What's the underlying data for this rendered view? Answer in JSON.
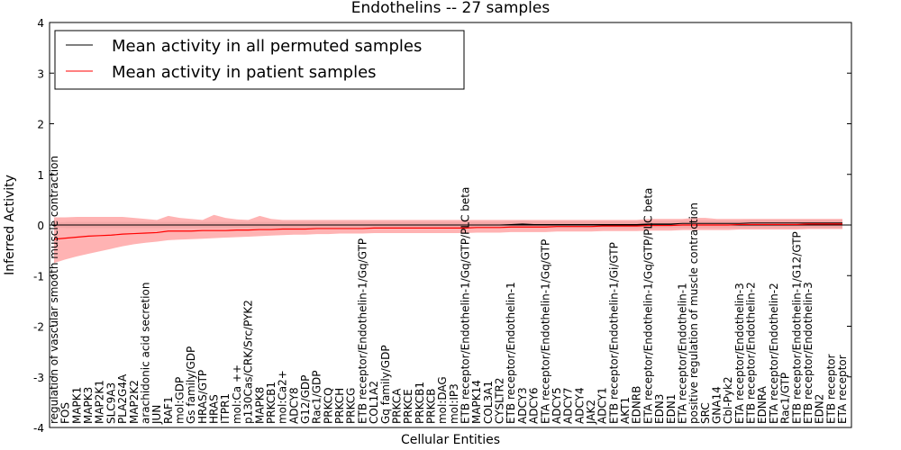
{
  "chart_data": {
    "type": "line",
    "title": "Endothelins -- 27 samples",
    "xlabel": "Cellular Entities",
    "ylabel": "Inferred Activity",
    "ylim": [
      -4,
      4
    ],
    "yticks": [
      -4,
      -3,
      -2,
      -1,
      0,
      1,
      2,
      3,
      4
    ],
    "legend_position": "top-left",
    "colors": {
      "permuted": "#000000",
      "patient": "#ff0000",
      "patient_band": "#ff9a9a",
      "permuted_band": "#b3b3b3",
      "zero_line": "#000000"
    },
    "categories": [
      "regulation of vascular smooth muscle contraction",
      "FOS",
      "MAPK1",
      "MAPK3",
      "MAP2K1",
      "SLC9A3",
      "PLA2G4A",
      "MAP2K2",
      "arachidonic acid secretion",
      "JUN",
      "RAF1",
      "mol:GDP",
      "Gs family/GDP",
      "HRAS/GTP",
      "HRAS",
      "ITPR1",
      "mol:Ca ++",
      "p130Cas/CRK/Src/PYK2",
      "MAPK8",
      "PRKCB1",
      "mol:Ca2+",
      "ADCY8",
      "G12/GDP",
      "Rac1/GDP",
      "PRKCQ",
      "PRKCH",
      "PRKCG",
      "ETB receptor/Endothelin-1/Gq/GTP",
      "COL1A2",
      "Gq family/GDP",
      "PRKCA",
      "PRKCE",
      "PRKCB1",
      "PRKCB",
      "mol:DAG",
      "mol:IP3",
      "ETB receptor/Endothelin-1/Gq/GTP/PLC beta",
      "MAPK14",
      "COL3A1",
      "CYSLTR2",
      "ETB receptor/Endothelin-1",
      "ADCY3",
      "ADCY6",
      "ETA receptor/Endothelin-1/Gq/GTP",
      "ADCY5",
      "ADCY7",
      "ADCY4",
      "JAK2",
      "ADCY1",
      "ETB receptor/Endothelin-1/Gi/GTP",
      "AKT1",
      "EDNRB",
      "ETA receptor/Endothelin-1/Gq/GTP/PLC beta",
      "EDN3",
      "EDN1",
      "ETA receptor/Endothelin-1",
      "positive regulation of muscle contraction",
      "SRC",
      "GNA14",
      "Cbl-Pyk2",
      "ETA receptor/Endothelin-3",
      "ETB receptor/Endothelin-2",
      "EDNRA",
      "ETA receptor/Endothelin-2",
      "Rac1/GTP",
      "ETB receptor/Endothelin-1/G12/GTP",
      "ETB receptor/Endothelin-3",
      "EDN2",
      "ETB receptor",
      "ETA receptor"
    ],
    "series": [
      {
        "name": "Mean activity in all permuted samples",
        "color": "#000000",
        "values": [
          0,
          0,
          0,
          0,
          0,
          0,
          0,
          0,
          0,
          0,
          0,
          0,
          0,
          0,
          0,
          0,
          0,
          0,
          0,
          0,
          0,
          0,
          0,
          0,
          0,
          0,
          0,
          0,
          0,
          0,
          0,
          0,
          0,
          0,
          0,
          0,
          0,
          0,
          0,
          0,
          0.01,
          0.02,
          0.01,
          0.01,
          0.01,
          0.01,
          0.01,
          0.01,
          0.01,
          0.01,
          0.01,
          0.01,
          0.02,
          0.02,
          0.02,
          0.03,
          0.03,
          0.03,
          0.03,
          0.03,
          0.03,
          0.04,
          0.04,
          0.04,
          0.04,
          0.04,
          0.04,
          0.04,
          0.04,
          0.04
        ],
        "band_lower": [
          -0.05,
          -0.06,
          -0.06,
          -0.06,
          -0.06,
          -0.06,
          -0.06,
          -0.06,
          -0.06,
          -0.06,
          -0.06,
          -0.06,
          -0.06,
          -0.06,
          -0.06,
          -0.06,
          -0.06,
          -0.06,
          -0.06,
          -0.06,
          -0.06,
          -0.06,
          -0.06,
          -0.06,
          -0.06,
          -0.06,
          -0.06,
          -0.06,
          -0.06,
          -0.06,
          -0.06,
          -0.06,
          -0.06,
          -0.06,
          -0.06,
          -0.06,
          -0.06,
          -0.06,
          -0.06,
          -0.06,
          -0.06,
          -0.06,
          -0.06,
          -0.06,
          -0.06,
          -0.06,
          -0.06,
          -0.06,
          -0.06,
          -0.06,
          -0.06,
          -0.06,
          -0.06,
          -0.06,
          -0.06,
          -0.06,
          -0.06,
          -0.06,
          -0.06,
          -0.06,
          -0.06,
          -0.06,
          -0.06,
          -0.06,
          -0.06,
          -0.06,
          -0.06,
          -0.06,
          -0.06,
          -0.06
        ],
        "band_upper": [
          0.05,
          0.06,
          0.06,
          0.06,
          0.06,
          0.06,
          0.06,
          0.06,
          0.06,
          0.06,
          0.06,
          0.06,
          0.06,
          0.06,
          0.06,
          0.06,
          0.06,
          0.06,
          0.06,
          0.06,
          0.06,
          0.06,
          0.06,
          0.06,
          0.06,
          0.06,
          0.06,
          0.06,
          0.06,
          0.06,
          0.06,
          0.06,
          0.06,
          0.06,
          0.06,
          0.06,
          0.06,
          0.06,
          0.06,
          0.06,
          0.07,
          0.08,
          0.07,
          0.07,
          0.07,
          0.07,
          0.07,
          0.07,
          0.07,
          0.07,
          0.07,
          0.07,
          0.08,
          0.08,
          0.08,
          0.09,
          0.09,
          0.09,
          0.09,
          0.09,
          0.09,
          0.1,
          0.1,
          0.1,
          0.1,
          0.1,
          0.1,
          0.1,
          0.1,
          0.1
        ]
      },
      {
        "name": "Mean activity in patient samples",
        "color": "#ff0000",
        "values": [
          -0.28,
          -0.26,
          -0.24,
          -0.22,
          -0.21,
          -0.2,
          -0.18,
          -0.17,
          -0.16,
          -0.15,
          -0.12,
          -0.12,
          -0.12,
          -0.11,
          -0.11,
          -0.11,
          -0.1,
          -0.1,
          -0.09,
          -0.09,
          -0.08,
          -0.08,
          -0.08,
          -0.07,
          -0.07,
          -0.07,
          -0.07,
          -0.07,
          -0.06,
          -0.06,
          -0.06,
          -0.06,
          -0.06,
          -0.06,
          -0.06,
          -0.06,
          -0.06,
          -0.05,
          -0.05,
          -0.05,
          -0.04,
          -0.04,
          -0.04,
          -0.04,
          -0.03,
          -0.03,
          -0.03,
          -0.03,
          -0.02,
          -0.02,
          -0.02,
          -0.02,
          -0.01,
          -0.01,
          -0.01,
          0,
          0,
          0,
          0,
          0,
          0.01,
          0.01,
          0.01,
          0.01,
          0.01,
          0.01,
          0.02,
          0.02,
          0.02,
          0.02
        ],
        "band_lower": [
          -0.75,
          -0.68,
          -0.62,
          -0.57,
          -0.52,
          -0.47,
          -0.42,
          -0.38,
          -0.35,
          -0.33,
          -0.3,
          -0.29,
          -0.28,
          -0.27,
          -0.26,
          -0.25,
          -0.24,
          -0.23,
          -0.22,
          -0.21,
          -0.2,
          -0.19,
          -0.19,
          -0.18,
          -0.18,
          -0.17,
          -0.17,
          -0.17,
          -0.16,
          -0.16,
          -0.16,
          -0.16,
          -0.16,
          -0.16,
          -0.16,
          -0.16,
          -0.16,
          -0.15,
          -0.15,
          -0.15,
          -0.14,
          -0.14,
          -0.14,
          -0.14,
          -0.13,
          -0.13,
          -0.13,
          -0.13,
          -0.12,
          -0.12,
          -0.12,
          -0.12,
          -0.11,
          -0.11,
          -0.11,
          -0.1,
          -0.1,
          -0.1,
          -0.1,
          -0.1,
          -0.09,
          -0.09,
          -0.09,
          -0.09,
          -0.09,
          -0.09,
          -0.08,
          -0.08,
          -0.08,
          -0.08
        ],
        "band_upper": [
          0.15,
          0.15,
          0.16,
          0.16,
          0.16,
          0.16,
          0.16,
          0.14,
          0.12,
          0.1,
          0.18,
          0.14,
          0.12,
          0.1,
          0.2,
          0.14,
          0.11,
          0.1,
          0.18,
          0.12,
          0.1,
          0.1,
          0.1,
          0.1,
          0.1,
          0.1,
          0.1,
          0.1,
          0.1,
          0.1,
          0.1,
          0.1,
          0.1,
          0.1,
          0.1,
          0.1,
          0.1,
          0.1,
          0.1,
          0.1,
          0.1,
          0.1,
          0.1,
          0.1,
          0.1,
          0.1,
          0.1,
          0.1,
          0.1,
          0.1,
          0.1,
          0.1,
          0.12,
          0.12,
          0.12,
          0.12,
          0.14,
          0.14,
          0.12,
          0.12,
          0.12,
          0.12,
          0.12,
          0.12,
          0.12,
          0.12,
          0.12,
          0.12,
          0.12,
          0.12
        ]
      }
    ]
  }
}
